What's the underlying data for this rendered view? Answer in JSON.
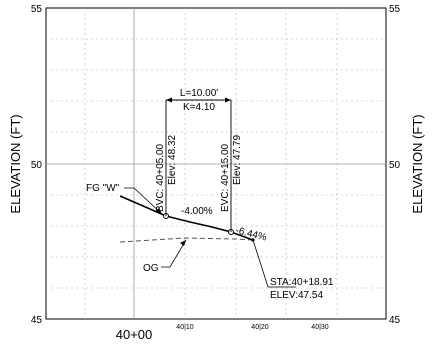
{
  "axes": {
    "y_title_left": "ELEVATION (FT)",
    "y_title_right": "ELEVATION (FT)",
    "y_ticks": [
      "55",
      "50",
      "45"
    ],
    "x_main_label": "40+00",
    "x_minor_labels": [
      "40|10",
      "40|20",
      "40|30"
    ]
  },
  "curve": {
    "length_label": "L=10.00'",
    "k_label": "K=4.10",
    "bvc_station": "BVC: 40+05.00",
    "bvc_elev": "Elev: 48.32",
    "evc_station": "EVC: 40+15.00",
    "evc_elev": "Elev: 47.79",
    "grade_in": "-4.00%",
    "grade_out": "-6.44%"
  },
  "labels": {
    "fg": "FG \"W\"",
    "og": "OG",
    "end_sta": "STA:40+18.91",
    "end_elev": "ELEV:47.54"
  },
  "colors": {
    "major_grid": "#9a9a9a",
    "minor_grid": "#b4b4b4",
    "profile": "#000000",
    "existing_ground": "#555555"
  }
}
